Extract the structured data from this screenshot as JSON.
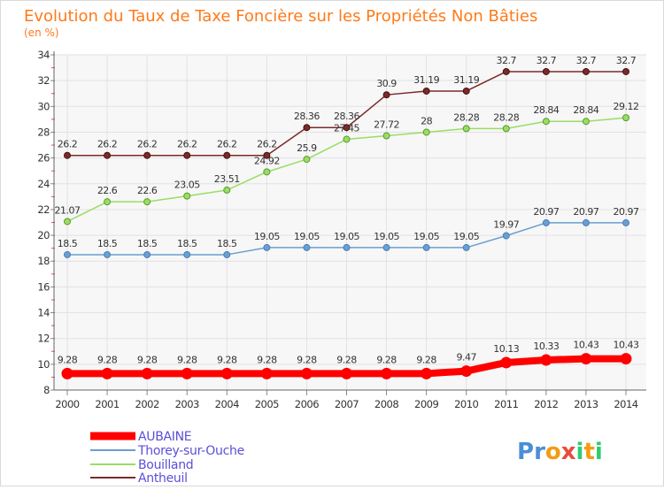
{
  "chart_data": {
    "type": "line",
    "title": "Evolution du Taux de Taxe Foncière sur les Propriétés Non Bâties",
    "subtitle": "(en %)",
    "x": [
      "2000",
      "2001",
      "2002",
      "2003",
      "2004",
      "2005",
      "2006",
      "2007",
      "2008",
      "2009",
      "2010",
      "2011",
      "2012",
      "2013",
      "2014"
    ],
    "ylim": [
      8,
      34
    ],
    "yticks": [
      "8",
      "10",
      "12",
      "14",
      "16",
      "18",
      "20",
      "22",
      "24",
      "26",
      "28",
      "30",
      "32",
      "34"
    ],
    "grid": true,
    "legend_position": "bottom-left",
    "series": [
      {
        "name": "AUBAINE",
        "color": "#ff0000",
        "values": [
          9.28,
          9.28,
          9.28,
          9.28,
          9.28,
          9.28,
          9.28,
          9.28,
          9.28,
          9.28,
          9.47,
          10.13,
          10.33,
          10.43,
          10.43
        ],
        "labels": [
          "9.28",
          "9.28",
          "9.28",
          "9.28",
          "9.28",
          "9.28",
          "9.28",
          "9.28",
          "9.28",
          "9.28",
          "9.47",
          "10.13",
          "10.33",
          "10.43",
          "10.43"
        ]
      },
      {
        "name": "Thorey-sur-Ouche",
        "color": "#6a9fd0",
        "values": [
          18.5,
          18.5,
          18.5,
          18.5,
          18.5,
          19.05,
          19.05,
          19.05,
          19.05,
          19.05,
          19.05,
          19.97,
          20.97,
          20.97,
          20.97
        ],
        "labels": [
          "18.5",
          "18.5",
          "18.5",
          "18.5",
          "18.5",
          "19.05",
          "19.05",
          "19.05",
          "19.05",
          "19.05",
          "19.05",
          "19.97",
          "20.97",
          "20.97",
          "20.97"
        ]
      },
      {
        "name": "Bouilland",
        "color": "#99dd66",
        "values": [
          21.07,
          22.6,
          22.6,
          23.05,
          23.51,
          24.92,
          25.9,
          27.45,
          27.72,
          28,
          28.28,
          28.28,
          28.84,
          28.84,
          29.12
        ],
        "labels": [
          "21.07",
          "22.6",
          "22.6",
          "23.05",
          "23.51",
          "24.92",
          "25.9",
          "27.45",
          "27.72",
          "28",
          "28.28",
          "28.28",
          "28.84",
          "28.84",
          "29.12"
        ]
      },
      {
        "name": "Antheuil",
        "color": "#7a2a2a",
        "values": [
          26.2,
          26.2,
          26.2,
          26.2,
          26.2,
          26.2,
          28.36,
          28.36,
          30.9,
          31.19,
          31.19,
          32.7,
          32.7,
          32.7,
          32.7
        ],
        "labels": [
          "26.2",
          "26.2",
          "26.2",
          "26.2",
          "26.2",
          "26.2",
          "28.36",
          "28.36",
          "30.9",
          "31.19",
          "31.19",
          "32.7",
          "32.7",
          "32.7",
          "32.7"
        ]
      }
    ]
  },
  "logo": {
    "text": "Proxiti",
    "letter_colors": [
      "#4a8fd6",
      "#4a8fd6",
      "#f39c12",
      "#e74c3c",
      "#2ecc71",
      "#f39c12",
      "#2ecc71"
    ]
  }
}
